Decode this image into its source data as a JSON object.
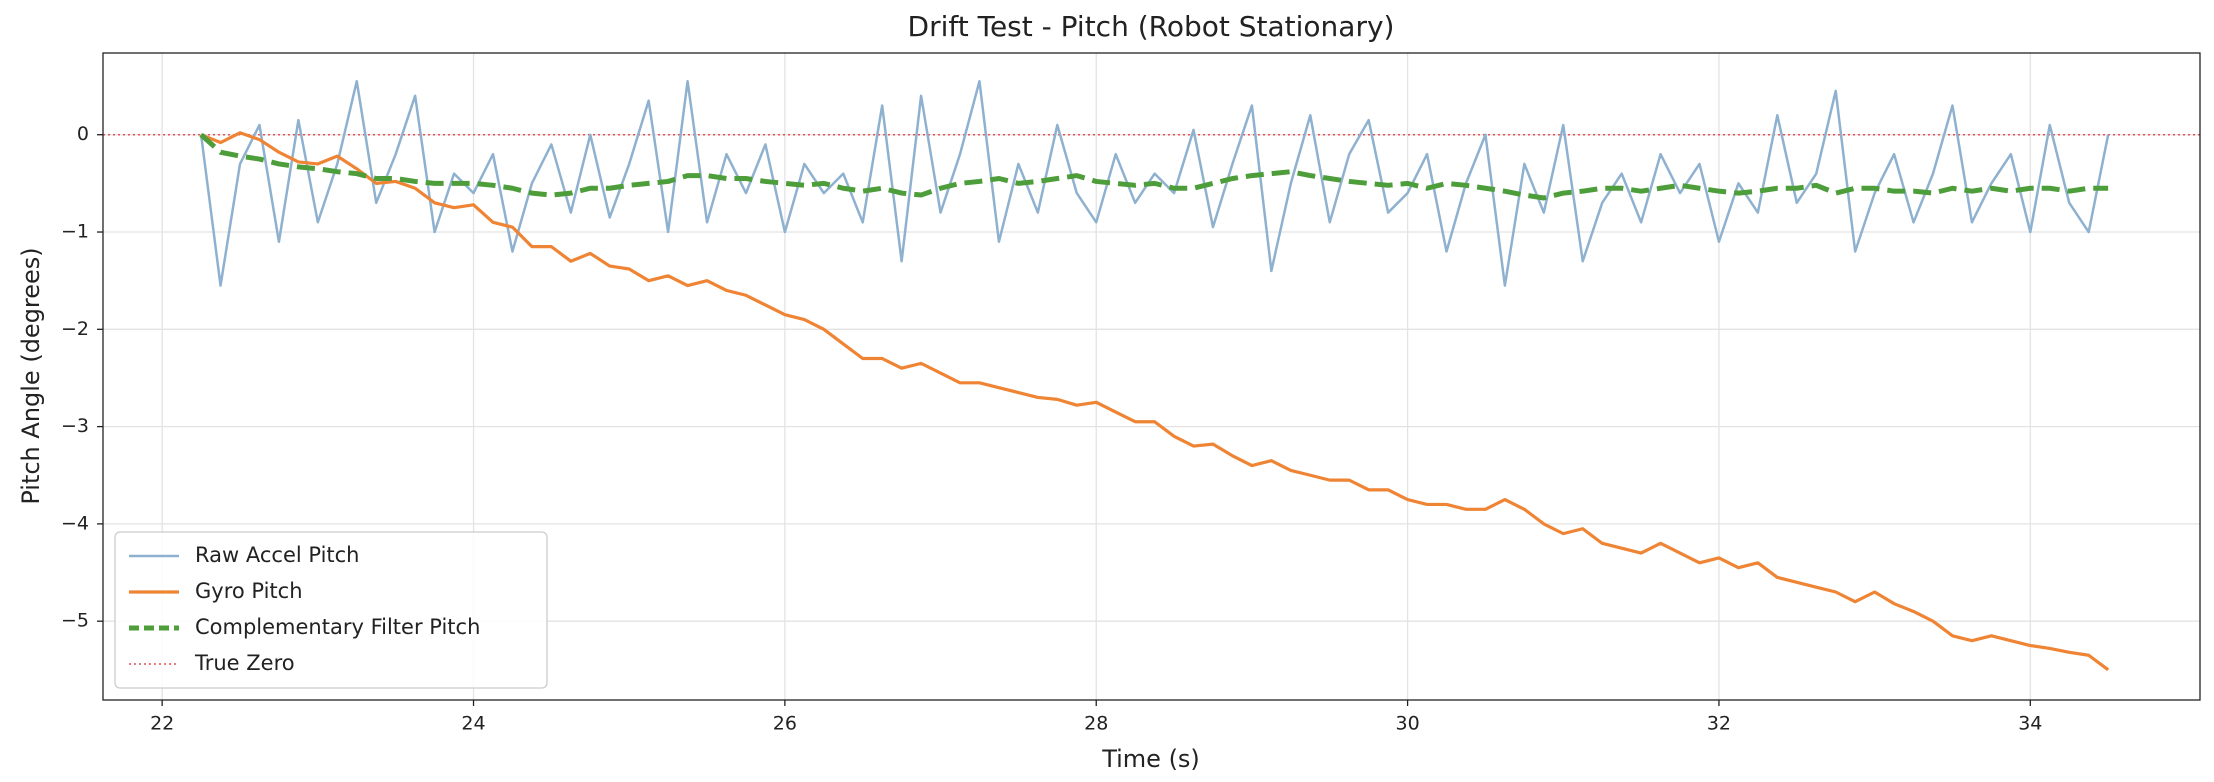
{
  "chart_data": {
    "type": "line",
    "title": "Drift Test - Pitch (Robot Stationary)",
    "x_label": "Time (s)",
    "y_label": "Pitch Angle (degrees)",
    "x": [
      22.25,
      22.375,
      22.5,
      22.625,
      22.75,
      22.875,
      23,
      23.125,
      23.25,
      23.375,
      23.5,
      23.625,
      23.75,
      23.875,
      24,
      24.125,
      24.25,
      24.375,
      24.5,
      24.625,
      24.75,
      24.875,
      25,
      25.125,
      25.25,
      25.375,
      25.5,
      25.625,
      25.75,
      25.875,
      26,
      26.125,
      26.25,
      26.375,
      26.5,
      26.625,
      26.75,
      26.875,
      27,
      27.125,
      27.25,
      27.375,
      27.5,
      27.625,
      27.75,
      27.875,
      28,
      28.125,
      28.25,
      28.375,
      28.5,
      28.625,
      28.75,
      28.875,
      29,
      29.125,
      29.25,
      29.375,
      29.5,
      29.625,
      29.75,
      29.875,
      30,
      30.125,
      30.25,
      30.375,
      30.5,
      30.625,
      30.75,
      30.875,
      31,
      31.125,
      31.25,
      31.375,
      31.5,
      31.625,
      31.75,
      31.875,
      32,
      32.125,
      32.25,
      32.375,
      32.5,
      32.625,
      32.75,
      32.875,
      33,
      33.125,
      33.25,
      33.375,
      33.5,
      33.625,
      33.75,
      33.875,
      34,
      34.125,
      34.25,
      34.375,
      34.5
    ],
    "series": [
      {
        "name": "Raw Accel Pitch",
        "color": "#8fb1d0",
        "linestyle": "solid",
        "values": [
          0,
          -1.55,
          -0.3,
          0.1,
          -1.1,
          0.15,
          -0.9,
          -0.3,
          0.55,
          -0.7,
          -0.2,
          0.4,
          -1.0,
          -0.4,
          -0.6,
          -0.2,
          -1.2,
          -0.5,
          -0.1,
          -0.8,
          0.0,
          -0.85,
          -0.3,
          0.35,
          -1.0,
          0.55,
          -0.9,
          -0.2,
          -0.6,
          -0.1,
          -1.0,
          -0.3,
          -0.6,
          -0.4,
          -0.9,
          0.3,
          -1.3,
          0.4,
          -0.8,
          -0.2,
          0.55,
          -1.1,
          -0.3,
          -0.8,
          0.1,
          -0.6,
          -0.9,
          -0.2,
          -0.7,
          -0.4,
          -0.6,
          0.05,
          -0.95,
          -0.3,
          0.3,
          -1.4,
          -0.5,
          0.2,
          -0.9,
          -0.2,
          0.15,
          -0.8,
          -0.6,
          -0.2,
          -1.2,
          -0.5,
          0.0,
          -1.55,
          -0.3,
          -0.8,
          0.1,
          -1.3,
          -0.7,
          -0.4,
          -0.9,
          -0.2,
          -0.6,
          -0.3,
          -1.1,
          -0.5,
          -0.8,
          0.2,
          -0.7,
          -0.4,
          0.45,
          -1.2,
          -0.6,
          -0.2,
          -0.9,
          -0.4,
          0.3,
          -0.9,
          -0.5,
          -0.2,
          -1.0,
          0.1,
          -0.7,
          -1.0,
          0.0
        ]
      },
      {
        "name": "Gyro Pitch",
        "color": "#ee8434",
        "linestyle": "solid",
        "values": [
          0,
          -0.08,
          0.02,
          -0.05,
          -0.18,
          -0.28,
          -0.3,
          -0.22,
          -0.35,
          -0.5,
          -0.48,
          -0.55,
          -0.7,
          -0.75,
          -0.72,
          -0.9,
          -0.95,
          -1.15,
          -1.15,
          -1.3,
          -1.22,
          -1.35,
          -1.38,
          -1.5,
          -1.45,
          -1.55,
          -1.5,
          -1.6,
          -1.65,
          -1.75,
          -1.85,
          -1.9,
          -2.0,
          -2.15,
          -2.3,
          -2.3,
          -2.4,
          -2.35,
          -2.45,
          -2.55,
          -2.55,
          -2.6,
          -2.65,
          -2.7,
          -2.72,
          -2.78,
          -2.75,
          -2.85,
          -2.95,
          -2.95,
          -3.1,
          -3.2,
          -3.18,
          -3.3,
          -3.4,
          -3.35,
          -3.45,
          -3.5,
          -3.55,
          -3.55,
          -3.65,
          -3.65,
          -3.75,
          -3.8,
          -3.8,
          -3.85,
          -3.85,
          -3.75,
          -3.85,
          -4.0,
          -4.1,
          -4.05,
          -4.2,
          -4.25,
          -4.3,
          -4.2,
          -4.3,
          -4.4,
          -4.35,
          -4.45,
          -4.4,
          -4.55,
          -4.6,
          -4.65,
          -4.7,
          -4.8,
          -4.7,
          -4.82,
          -4.9,
          -5.0,
          -5.15,
          -5.2,
          -5.15,
          -5.2,
          -5.25,
          -5.28,
          -5.32,
          -5.35,
          -5.5
        ]
      },
      {
        "name": "Complementary Filter Pitch",
        "color": "#4d9e3a",
        "linestyle": "dashed",
        "values": [
          0,
          -0.18,
          -0.22,
          -0.25,
          -0.3,
          -0.33,
          -0.35,
          -0.38,
          -0.4,
          -0.45,
          -0.45,
          -0.48,
          -0.5,
          -0.5,
          -0.5,
          -0.52,
          -0.55,
          -0.6,
          -0.62,
          -0.6,
          -0.55,
          -0.55,
          -0.52,
          -0.5,
          -0.48,
          -0.42,
          -0.42,
          -0.45,
          -0.45,
          -0.48,
          -0.5,
          -0.52,
          -0.5,
          -0.55,
          -0.58,
          -0.55,
          -0.6,
          -0.62,
          -0.55,
          -0.5,
          -0.48,
          -0.45,
          -0.5,
          -0.48,
          -0.45,
          -0.42,
          -0.48,
          -0.5,
          -0.52,
          -0.5,
          -0.55,
          -0.55,
          -0.5,
          -0.45,
          -0.42,
          -0.4,
          -0.38,
          -0.42,
          -0.45,
          -0.48,
          -0.5,
          -0.52,
          -0.5,
          -0.55,
          -0.5,
          -0.52,
          -0.55,
          -0.58,
          -0.62,
          -0.65,
          -0.6,
          -0.58,
          -0.55,
          -0.55,
          -0.58,
          -0.55,
          -0.52,
          -0.55,
          -0.58,
          -0.6,
          -0.58,
          -0.55,
          -0.55,
          -0.52,
          -0.6,
          -0.55,
          -0.55,
          -0.58,
          -0.58,
          -0.6,
          -0.55,
          -0.58,
          -0.55,
          -0.58,
          -0.55,
          -0.55,
          -0.58,
          -0.55,
          -0.55
        ]
      }
    ],
    "reference_lines": [
      {
        "name": "True Zero",
        "color": "#e05050",
        "linestyle": "dotted",
        "value": 0
      }
    ],
    "xlim": [
      21.62,
      35.09
    ],
    "ylim": [
      -5.81,
      0.84
    ],
    "xticks": [
      22,
      24,
      26,
      28,
      30,
      32,
      34
    ],
    "yticks": [
      {
        "value": -5,
        "label": "−5"
      },
      {
        "value": -4,
        "label": "−4"
      },
      {
        "value": -3,
        "label": "−3"
      },
      {
        "value": -2,
        "label": "−2"
      },
      {
        "value": -1,
        "label": "−1"
      },
      0
    ],
    "grid": true,
    "legend": "lower left"
  }
}
